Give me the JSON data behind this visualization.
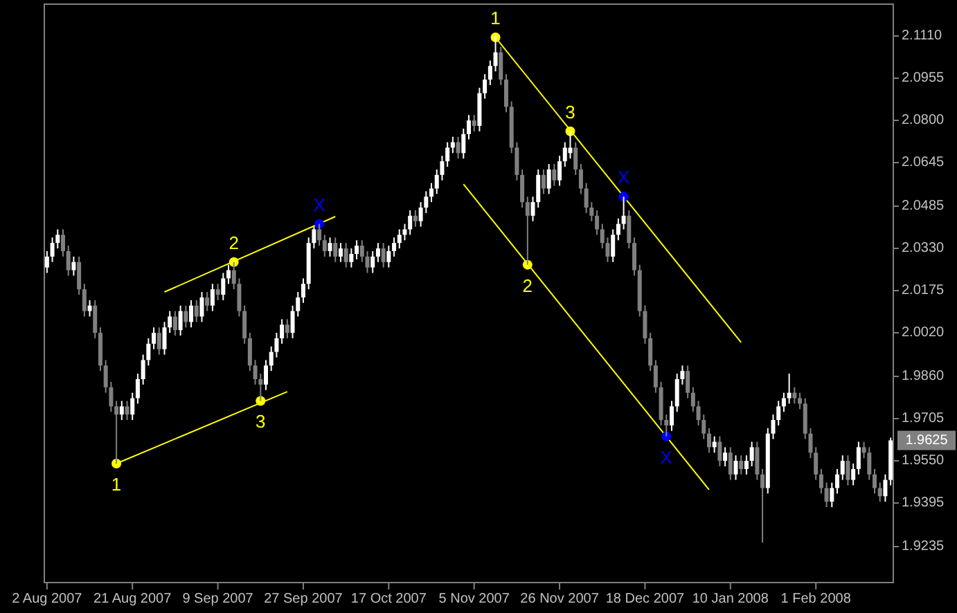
{
  "chart_data": {
    "type": "candlestick",
    "grid": false,
    "ylim": [
      1.9103,
      2.1227
    ],
    "yticks": [
      {
        "value": 2.111,
        "label": "2.1110"
      },
      2.0955,
      {
        "value": 2.08,
        "label": "2.0800"
      },
      2.0645,
      2.0485,
      {
        "value": 2.033,
        "label": "2.0330"
      },
      2.0175,
      {
        "value": 2.002,
        "label": "2.0020"
      },
      {
        "value": 1.986,
        "label": "1.9860"
      },
      1.9705,
      {
        "value": 1.955,
        "label": "1.9550"
      },
      1.9395,
      1.9235
    ],
    "categories": [
      "2 Aug 2007",
      null,
      null,
      null,
      null,
      null,
      null,
      null,
      null,
      null,
      null,
      null,
      null,
      null,
      null,
      null,
      "21 Aug 2007",
      null,
      null,
      null,
      null,
      null,
      null,
      null,
      null,
      null,
      null,
      null,
      null,
      null,
      null,
      null,
      "9 Sep 2007",
      null,
      null,
      null,
      null,
      null,
      null,
      null,
      null,
      null,
      null,
      null,
      null,
      null,
      null,
      null,
      "27 Sep 2007",
      null,
      null,
      null,
      null,
      null,
      null,
      null,
      null,
      null,
      null,
      null,
      null,
      null,
      null,
      null,
      "17 Oct 2007",
      null,
      null,
      null,
      null,
      null,
      null,
      null,
      null,
      null,
      null,
      null,
      null,
      null,
      null,
      null,
      "5 Nov 2007",
      null,
      null,
      null,
      null,
      null,
      null,
      null,
      null,
      null,
      null,
      null,
      null,
      null,
      null,
      null,
      "26 Nov 2007",
      null,
      null,
      null,
      null,
      null,
      null,
      null,
      null,
      null,
      null,
      null,
      null,
      null,
      null,
      null,
      "18 Dec 2007",
      null,
      null,
      null,
      null,
      null,
      null,
      null,
      null,
      null,
      null,
      null,
      null,
      null,
      null,
      null,
      "10 Jan 2008",
      null,
      null,
      null,
      null,
      null,
      null,
      null,
      null,
      null,
      null,
      null,
      null,
      null,
      null,
      null,
      "1 Feb 2008",
      null,
      null,
      null,
      null,
      null,
      null,
      null,
      null,
      null,
      null,
      null,
      null,
      null,
      null
    ],
    "ohlc": [
      [
        2.026,
        2.032,
        2.024,
        2.03
      ],
      [
        2.03,
        2.037,
        2.028,
        2.035
      ],
      [
        2.035,
        2.04,
        2.033,
        2.038
      ],
      [
        2.038,
        2.04,
        2.03,
        2.032
      ],
      [
        2.032,
        2.034,
        2.023,
        2.025
      ],
      [
        2.025,
        2.03,
        2.023,
        2.028
      ],
      [
        2.028,
        2.03,
        2.016,
        2.018
      ],
      [
        2.018,
        2.02,
        2.008,
        2.01
      ],
      [
        2.01,
        2.014,
        2.008,
        2.012
      ],
      [
        2.012,
        2.014,
        2.0,
        2.002
      ],
      [
        2.002,
        2.004,
        1.988,
        1.99
      ],
      [
        1.99,
        1.992,
        1.98,
        1.982
      ],
      [
        1.982,
        1.984,
        1.973,
        1.975
      ],
      [
        1.975,
        1.977,
        1.954,
        1.972
      ],
      [
        1.972,
        1.977,
        1.97,
        1.975
      ],
      [
        1.975,
        1.977,
        1.97,
        1.972
      ],
      [
        1.972,
        1.98,
        1.97,
        1.978
      ],
      [
        1.978,
        1.987,
        1.976,
        1.985
      ],
      [
        1.985,
        1.994,
        1.983,
        1.992
      ],
      [
        1.992,
        2.0,
        1.99,
        1.998
      ],
      [
        1.998,
        2.004,
        1.996,
        2.002
      ],
      [
        2.002,
        2.004,
        1.994,
        1.996
      ],
      [
        1.996,
        2.006,
        1.994,
        2.004
      ],
      [
        2.004,
        2.01,
        2.002,
        2.008
      ],
      [
        2.008,
        2.01,
        2.001,
        2.003
      ],
      [
        2.003,
        2.012,
        2.001,
        2.01
      ],
      [
        2.01,
        2.012,
        2.004,
        2.006
      ],
      [
        2.006,
        2.014,
        2.004,
        2.012
      ],
      [
        2.012,
        2.014,
        2.006,
        2.008
      ],
      [
        2.008,
        2.017,
        2.006,
        2.015
      ],
      [
        2.015,
        2.017,
        2.01,
        2.012
      ],
      [
        2.012,
        2.02,
        2.01,
        2.018
      ],
      [
        2.018,
        2.02,
        2.014,
        2.016
      ],
      [
        2.016,
        2.024,
        2.014,
        2.022
      ],
      [
        2.022,
        2.027,
        2.02,
        2.025
      ],
      [
        2.025,
        2.028,
        2.018,
        2.02
      ],
      [
        2.02,
        2.022,
        2.008,
        2.01
      ],
      [
        2.01,
        2.012,
        1.998,
        2.0
      ],
      [
        2.0,
        2.002,
        1.988,
        1.99
      ],
      [
        1.99,
        1.992,
        1.983,
        1.985
      ],
      [
        1.985,
        1.987,
        1.977,
        1.983
      ],
      [
        1.983,
        1.992,
        1.981,
        1.99
      ],
      [
        1.99,
        1.997,
        1.988,
        1.995
      ],
      [
        1.995,
        2.002,
        1.993,
        2.0
      ],
      [
        2.0,
        2.007,
        1.998,
        2.005
      ],
      [
        2.005,
        2.007,
        2.0,
        2.002
      ],
      [
        2.002,
        2.012,
        2.0,
        2.01
      ],
      [
        2.01,
        2.017,
        2.008,
        2.015
      ],
      [
        2.015,
        2.022,
        2.013,
        2.02
      ],
      [
        2.02,
        2.037,
        2.018,
        2.035
      ],
      [
        2.035,
        2.041,
        2.033,
        2.04
      ],
      [
        2.04,
        2.042,
        2.034,
        2.036
      ],
      [
        2.036,
        2.038,
        2.03,
        2.032
      ],
      [
        2.032,
        2.037,
        2.03,
        2.035
      ],
      [
        2.035,
        2.037,
        2.028,
        2.03
      ],
      [
        2.03,
        2.035,
        2.028,
        2.033
      ],
      [
        2.033,
        2.035,
        2.026,
        2.028
      ],
      [
        2.028,
        2.033,
        2.026,
        2.031
      ],
      [
        2.031,
        2.036,
        2.029,
        2.034
      ],
      [
        2.034,
        2.036,
        2.028,
        2.03
      ],
      [
        2.03,
        2.032,
        2.024,
        2.026
      ],
      [
        2.026,
        2.032,
        2.024,
        2.03
      ],
      [
        2.03,
        2.035,
        2.028,
        2.033
      ],
      [
        2.033,
        2.035,
        2.026,
        2.028
      ],
      [
        2.028,
        2.034,
        2.026,
        2.032
      ],
      [
        2.032,
        2.037,
        2.03,
        2.035
      ],
      [
        2.035,
        2.04,
        2.033,
        2.038
      ],
      [
        2.038,
        2.042,
        2.036,
        2.04
      ],
      [
        2.04,
        2.047,
        2.038,
        2.045
      ],
      [
        2.045,
        2.047,
        2.041,
        2.043
      ],
      [
        2.043,
        2.05,
        2.041,
        2.048
      ],
      [
        2.048,
        2.054,
        2.046,
        2.052
      ],
      [
        2.052,
        2.057,
        2.05,
        2.055
      ],
      [
        2.055,
        2.062,
        2.053,
        2.06
      ],
      [
        2.06,
        2.067,
        2.058,
        2.065
      ],
      [
        2.065,
        2.072,
        2.063,
        2.07
      ],
      [
        2.07,
        2.074,
        2.068,
        2.072
      ],
      [
        2.072,
        2.074,
        2.066,
        2.068
      ],
      [
        2.068,
        2.077,
        2.066,
        2.075
      ],
      [
        2.075,
        2.082,
        2.073,
        2.08
      ],
      [
        2.08,
        2.082,
        2.076,
        2.078
      ],
      [
        2.078,
        2.092,
        2.076,
        2.09
      ],
      [
        2.09,
        2.097,
        2.088,
        2.095
      ],
      [
        2.095,
        2.102,
        2.093,
        2.1
      ],
      [
        2.1,
        2.111,
        2.098,
        2.105
      ],
      [
        2.105,
        2.107,
        2.093,
        2.095
      ],
      [
        2.095,
        2.097,
        2.083,
        2.085
      ],
      [
        2.085,
        2.087,
        2.068,
        2.07
      ],
      [
        2.07,
        2.072,
        2.058,
        2.06
      ],
      [
        2.06,
        2.062,
        2.048,
        2.05
      ],
      [
        2.05,
        2.052,
        2.027,
        2.045
      ],
      [
        2.045,
        2.052,
        2.043,
        2.05
      ],
      [
        2.05,
        2.062,
        2.048,
        2.06
      ],
      [
        2.06,
        2.062,
        2.053,
        2.055
      ],
      [
        2.055,
        2.064,
        2.053,
        2.062
      ],
      [
        2.062,
        2.064,
        2.056,
        2.058
      ],
      [
        2.058,
        2.067,
        2.056,
        2.065
      ],
      [
        2.065,
        2.072,
        2.063,
        2.07
      ],
      [
        2.068,
        2.076,
        2.066,
        2.07
      ],
      [
        2.07,
        2.072,
        2.06,
        2.062
      ],
      [
        2.062,
        2.064,
        2.053,
        2.055
      ],
      [
        2.055,
        2.057,
        2.046,
        2.048
      ],
      [
        2.048,
        2.05,
        2.043,
        2.045
      ],
      [
        2.045,
        2.047,
        2.038,
        2.04
      ],
      [
        2.04,
        2.042,
        2.033,
        2.035
      ],
      [
        2.035,
        2.037,
        2.028,
        2.03
      ],
      [
        2.03,
        2.04,
        2.028,
        2.038
      ],
      [
        2.038,
        2.044,
        2.036,
        2.042
      ],
      [
        2.042,
        2.052,
        2.04,
        2.045
      ],
      [
        2.045,
        2.047,
        2.033,
        2.035
      ],
      [
        2.035,
        2.037,
        2.023,
        2.025
      ],
      [
        2.025,
        2.027,
        2.008,
        2.01
      ],
      [
        2.01,
        2.012,
        1.998,
        2.0
      ],
      [
        2.0,
        2.002,
        1.988,
        1.99
      ],
      [
        1.99,
        1.992,
        1.98,
        1.982
      ],
      [
        1.982,
        1.984,
        1.968,
        1.97
      ],
      [
        1.97,
        1.972,
        1.964,
        1.968
      ],
      [
        1.968,
        1.977,
        1.966,
        1.975
      ],
      [
        1.975,
        1.987,
        1.973,
        1.985
      ],
      [
        1.985,
        1.99,
        1.983,
        1.988
      ],
      [
        1.988,
        1.99,
        1.978,
        1.98
      ],
      [
        1.98,
        1.982,
        1.973,
        1.975
      ],
      [
        1.975,
        1.977,
        1.968,
        1.97
      ],
      [
        1.97,
        1.972,
        1.963,
        1.965
      ],
      [
        1.965,
        1.967,
        1.958,
        1.96
      ],
      [
        1.96,
        1.964,
        1.958,
        1.962
      ],
      [
        1.962,
        1.964,
        1.953,
        1.955
      ],
      [
        1.955,
        1.96,
        1.953,
        1.958
      ],
      [
        1.958,
        1.96,
        1.948,
        1.95
      ],
      [
        1.95,
        1.957,
        1.948,
        1.955
      ],
      [
        1.955,
        1.957,
        1.95,
        1.952
      ],
      [
        1.952,
        1.957,
        1.95,
        1.955
      ],
      [
        1.955,
        1.962,
        1.953,
        1.96
      ],
      [
        1.96,
        1.962,
        1.948,
        1.95
      ],
      [
        1.95,
        1.952,
        1.925,
        1.945
      ],
      [
        1.945,
        1.967,
        1.943,
        1.965
      ],
      [
        1.965,
        1.972,
        1.963,
        1.97
      ],
      [
        1.97,
        1.977,
        1.968,
        1.975
      ],
      [
        1.975,
        1.98,
        1.973,
        1.978
      ],
      [
        1.978,
        1.987,
        1.976,
        1.98
      ],
      [
        1.98,
        1.982,
        1.976,
        1.978
      ],
      [
        1.978,
        1.98,
        1.974,
        1.976
      ],
      [
        1.976,
        1.978,
        1.963,
        1.965
      ],
      [
        1.965,
        1.967,
        1.956,
        1.958
      ],
      [
        1.958,
        1.96,
        1.948,
        1.95
      ],
      [
        1.95,
        1.952,
        1.943,
        1.945
      ],
      [
        1.945,
        1.947,
        1.938,
        1.94
      ],
      [
        1.94,
        1.947,
        1.938,
        1.945
      ],
      [
        1.945,
        1.952,
        1.943,
        1.95
      ],
      [
        1.95,
        1.957,
        1.948,
        1.955
      ],
      [
        1.955,
        1.957,
        1.946,
        1.948
      ],
      [
        1.948,
        1.954,
        1.946,
        1.952
      ],
      [
        1.952,
        1.962,
        1.95,
        1.96
      ],
      [
        1.96,
        1.962,
        1.956,
        1.958
      ],
      [
        1.958,
        1.96,
        1.948,
        1.95
      ],
      [
        1.95,
        1.952,
        1.943,
        1.945
      ],
      [
        1.945,
        1.947,
        1.94,
        1.942
      ],
      [
        1.942,
        1.95,
        1.94,
        1.948
      ],
      [
        1.948,
        1.9635,
        1.946,
        1.9625
      ]
    ],
    "series": [
      {
        "type": "line",
        "color": "#ffff00",
        "values": [
          null,
          null,
          null,
          null,
          null,
          null,
          null,
          null,
          null,
          null,
          null,
          null,
          null,
          null,
          null,
          null,
          null,
          null,
          null,
          null,
          null,
          null,
          2.017,
          null,
          null,
          null,
          null,
          null,
          null,
          null,
          null,
          null,
          null,
          null,
          null,
          null,
          null,
          null,
          null,
          null,
          null,
          null,
          null,
          null,
          null,
          null,
          null,
          null,
          null,
          null,
          null,
          null,
          null,
          null,
          2.0447,
          null,
          null,
          null,
          null,
          null,
          null,
          null,
          null,
          null,
          null,
          null,
          null,
          null,
          null,
          null,
          null,
          null,
          null,
          null,
          null,
          null,
          null,
          null,
          null,
          null,
          null,
          null,
          null,
          null,
          null,
          null,
          null,
          null,
          null,
          null,
          null,
          null,
          null,
          null,
          null,
          null,
          null,
          null,
          null,
          null,
          null,
          null,
          null,
          null,
          null,
          null,
          null,
          null,
          null,
          null,
          null,
          null,
          null,
          null,
          null,
          null,
          null,
          null,
          null,
          null,
          null,
          null,
          null,
          null,
          null,
          null,
          null,
          null,
          null,
          null,
          null,
          null,
          null,
          null,
          null,
          null,
          null,
          null,
          null,
          null,
          null,
          null,
          null,
          null,
          null,
          null,
          null,
          null,
          null,
          null,
          null,
          null,
          null,
          null,
          null,
          null,
          null,
          null,
          null
        ]
      },
      {
        "type": "line",
        "color": "#ffff00",
        "values": [
          null,
          null,
          null,
          null,
          null,
          null,
          null,
          null,
          null,
          null,
          null,
          null,
          null,
          1.954,
          null,
          null,
          null,
          null,
          null,
          null,
          null,
          null,
          null,
          null,
          null,
          null,
          null,
          null,
          null,
          null,
          null,
          null,
          null,
          null,
          null,
          null,
          null,
          null,
          null,
          null,
          null,
          null,
          null,
          null,
          null,
          1.9804,
          null,
          null,
          null,
          null,
          null,
          null,
          null,
          null,
          null,
          null,
          null,
          null,
          null,
          null,
          null,
          null,
          null,
          null,
          null,
          null,
          null,
          null,
          null,
          null,
          null,
          null,
          null,
          null,
          null,
          null,
          null,
          null,
          null,
          null,
          null,
          null,
          null,
          null,
          null,
          null,
          null,
          null,
          null,
          null,
          null,
          null,
          null,
          null,
          null,
          null,
          null,
          null,
          null,
          null,
          null,
          null,
          null,
          null,
          null,
          null,
          null,
          null,
          null,
          null,
          null,
          null,
          null,
          null,
          null,
          null,
          null,
          null,
          null,
          null,
          null,
          null,
          null,
          null,
          null,
          null,
          null,
          null,
          null,
          null,
          null,
          null,
          null,
          null,
          null,
          null,
          null,
          null,
          null,
          null,
          null,
          null,
          null,
          null,
          null,
          null,
          null,
          null,
          null,
          null,
          null,
          null,
          null,
          null,
          null,
          null,
          null,
          null,
          null
        ]
      },
      {
        "type": "line",
        "color": "#ffff00",
        "values": [
          null,
          null,
          null,
          null,
          null,
          null,
          null,
          null,
          null,
          null,
          null,
          null,
          null,
          null,
          null,
          null,
          null,
          null,
          null,
          null,
          null,
          null,
          null,
          null,
          null,
          null,
          null,
          null,
          null,
          null,
          null,
          null,
          null,
          null,
          null,
          null,
          null,
          null,
          null,
          null,
          null,
          null,
          null,
          null,
          null,
          null,
          null,
          null,
          null,
          null,
          null,
          null,
          null,
          null,
          null,
          null,
          null,
          null,
          null,
          null,
          null,
          null,
          null,
          null,
          null,
          null,
          null,
          null,
          null,
          null,
          null,
          null,
          null,
          null,
          null,
          null,
          null,
          null,
          null,
          null,
          null,
          null,
          null,
          null,
          2.1105,
          null,
          null,
          null,
          null,
          null,
          null,
          null,
          null,
          null,
          null,
          null,
          null,
          null,
          null,
          null,
          null,
          null,
          null,
          null,
          null,
          null,
          null,
          null,
          null,
          null,
          null,
          null,
          null,
          null,
          null,
          null,
          null,
          null,
          null,
          null,
          null,
          null,
          null,
          null,
          null,
          null,
          null,
          null,
          null,
          null,
          1.9985,
          null,
          null,
          null,
          null,
          null,
          null,
          null,
          null,
          null,
          null,
          null,
          null,
          null,
          null,
          null,
          null,
          null,
          null,
          null,
          null,
          null,
          null,
          null,
          null,
          null,
          null,
          null,
          null
        ]
      },
      {
        "type": "line",
        "color": "#ffff00",
        "values": [
          null,
          null,
          null,
          null,
          null,
          null,
          null,
          null,
          null,
          null,
          null,
          null,
          null,
          null,
          null,
          null,
          null,
          null,
          null,
          null,
          null,
          null,
          null,
          null,
          null,
          null,
          null,
          null,
          null,
          null,
          null,
          null,
          null,
          null,
          null,
          null,
          null,
          null,
          null,
          null,
          null,
          null,
          null,
          null,
          null,
          null,
          null,
          null,
          null,
          null,
          null,
          null,
          null,
          null,
          null,
          null,
          null,
          null,
          null,
          null,
          null,
          null,
          null,
          null,
          null,
          null,
          null,
          null,
          null,
          null,
          null,
          null,
          null,
          null,
          null,
          null,
          null,
          null,
          2.0566,
          null,
          null,
          null,
          null,
          null,
          null,
          null,
          null,
          null,
          null,
          null,
          null,
          null,
          null,
          null,
          null,
          null,
          null,
          null,
          null,
          null,
          null,
          null,
          null,
          null,
          null,
          null,
          null,
          null,
          null,
          null,
          null,
          null,
          null,
          null,
          null,
          null,
          null,
          null,
          null,
          null,
          null,
          null,
          null,
          null,
          1.9444,
          null,
          null,
          null,
          null,
          null,
          null,
          null,
          null,
          null,
          null,
          null,
          null,
          null,
          null,
          null,
          null,
          null,
          null,
          null,
          null,
          null,
          null,
          null,
          null,
          null,
          null,
          null,
          null,
          null,
          null,
          null,
          null,
          null,
          null
        ]
      },
      {
        "type": "scatter",
        "name": "1",
        "color": "#ffff00",
        "marker": "circle",
        "values": [
          null,
          null,
          null,
          null,
          null,
          null,
          null,
          null,
          null,
          null,
          null,
          null,
          null,
          1.954,
          null,
          null,
          null,
          null,
          null,
          null,
          null,
          null,
          null,
          null,
          null,
          null,
          null,
          null,
          null,
          null,
          null,
          null,
          null,
          null,
          null,
          null,
          null,
          null,
          null,
          null,
          null,
          null,
          null,
          null,
          null,
          null,
          null,
          null,
          null,
          null,
          null,
          null,
          null,
          null,
          null,
          null,
          null,
          null,
          null,
          null,
          null,
          null,
          null,
          null,
          null,
          null,
          null,
          null,
          null,
          null,
          null,
          null,
          null,
          null,
          null,
          null,
          null,
          null,
          null,
          null,
          null,
          null,
          null,
          null,
          2.1105,
          null,
          null,
          null,
          null,
          null,
          null,
          null,
          null,
          null,
          null,
          null,
          null,
          null,
          null,
          null,
          null,
          null,
          null,
          null,
          null,
          null,
          null,
          null,
          null,
          null,
          null,
          null,
          null,
          null,
          null,
          null,
          null,
          null,
          null,
          null,
          null,
          null,
          null,
          null,
          null,
          null,
          null,
          null,
          null,
          null,
          null,
          null,
          null,
          null,
          null,
          null,
          null,
          null,
          null,
          null,
          null,
          null,
          null,
          null,
          null,
          null,
          null,
          null,
          null,
          null,
          null,
          null,
          null,
          null,
          null,
          null,
          null,
          null,
          null
        ]
      },
      {
        "type": "scatter",
        "name": "2",
        "color": "#ffff00",
        "marker": "circle",
        "values": [
          null,
          null,
          null,
          null,
          null,
          null,
          null,
          null,
          null,
          null,
          null,
          null,
          null,
          null,
          null,
          null,
          null,
          null,
          null,
          null,
          null,
          null,
          null,
          null,
          null,
          null,
          null,
          null,
          null,
          null,
          null,
          null,
          null,
          null,
          null,
          2.028,
          null,
          null,
          null,
          null,
          null,
          null,
          null,
          null,
          null,
          null,
          null,
          null,
          null,
          null,
          null,
          null,
          null,
          null,
          null,
          null,
          null,
          null,
          null,
          null,
          null,
          null,
          null,
          null,
          null,
          null,
          null,
          null,
          null,
          null,
          null,
          null,
          null,
          null,
          null,
          null,
          null,
          null,
          null,
          null,
          null,
          null,
          null,
          null,
          null,
          null,
          null,
          null,
          null,
          null,
          2.027,
          null,
          null,
          null,
          null,
          null,
          null,
          null,
          null,
          null,
          null,
          null,
          null,
          null,
          null,
          null,
          null,
          null,
          null,
          null,
          null,
          null,
          null,
          null,
          null,
          null,
          null,
          null,
          null,
          null,
          null,
          null,
          null,
          null,
          null,
          null,
          null,
          null,
          null,
          null,
          null,
          null,
          null,
          null,
          null,
          null,
          null,
          null,
          null,
          null,
          null,
          null,
          null,
          null,
          null,
          null,
          null,
          null,
          null,
          null,
          null,
          null,
          null,
          null,
          null,
          null,
          null,
          null,
          null
        ]
      },
      {
        "type": "scatter",
        "name": "3",
        "color": "#ffff00",
        "marker": "circle",
        "values": [
          null,
          null,
          null,
          null,
          null,
          null,
          null,
          null,
          null,
          null,
          null,
          null,
          null,
          null,
          null,
          null,
          null,
          null,
          null,
          null,
          null,
          null,
          null,
          null,
          null,
          null,
          null,
          null,
          null,
          null,
          null,
          null,
          null,
          null,
          null,
          null,
          null,
          null,
          null,
          null,
          1.977,
          null,
          null,
          null,
          null,
          null,
          null,
          null,
          null,
          null,
          null,
          null,
          null,
          null,
          null,
          null,
          null,
          null,
          null,
          null,
          null,
          null,
          null,
          null,
          null,
          null,
          null,
          null,
          null,
          null,
          null,
          null,
          null,
          null,
          null,
          null,
          null,
          null,
          null,
          null,
          null,
          null,
          null,
          null,
          null,
          null,
          null,
          null,
          null,
          null,
          null,
          null,
          null,
          null,
          null,
          null,
          null,
          null,
          2.076,
          null,
          null,
          null,
          null,
          null,
          null,
          null,
          null,
          null,
          null,
          null,
          null,
          null,
          null,
          null,
          null,
          null,
          null,
          null,
          null,
          null,
          null,
          null,
          null,
          null,
          null,
          null,
          null,
          null,
          null,
          null,
          null,
          null,
          null,
          null,
          null,
          null,
          null,
          null,
          null,
          null,
          null,
          null,
          null,
          null,
          null,
          null,
          null,
          null,
          null,
          null,
          null,
          null,
          null,
          null,
          null,
          null,
          null,
          null,
          null
        ]
      },
      {
        "type": "scatter",
        "name": "X",
        "color": "#0000ff",
        "marker": "circle",
        "values": [
          null,
          null,
          null,
          null,
          null,
          null,
          null,
          null,
          null,
          null,
          null,
          null,
          null,
          null,
          null,
          null,
          null,
          null,
          null,
          null,
          null,
          null,
          null,
          null,
          null,
          null,
          null,
          null,
          null,
          null,
          null,
          null,
          null,
          null,
          null,
          null,
          null,
          null,
          null,
          null,
          null,
          null,
          null,
          null,
          null,
          null,
          null,
          null,
          null,
          null,
          null,
          2.042,
          null,
          null,
          null,
          null,
          null,
          null,
          null,
          null,
          null,
          null,
          null,
          null,
          null,
          null,
          null,
          null,
          null,
          null,
          null,
          null,
          null,
          null,
          null,
          null,
          null,
          null,
          null,
          null,
          null,
          null,
          null,
          null,
          null,
          null,
          null,
          null,
          null,
          null,
          null,
          null,
          null,
          null,
          null,
          null,
          null,
          null,
          null,
          null,
          null,
          null,
          null,
          null,
          null,
          null,
          null,
          null,
          2.052,
          null,
          null,
          null,
          null,
          null,
          null,
          null,
          1.964,
          null,
          null,
          null,
          null,
          null,
          null,
          null,
          null,
          null,
          null,
          null,
          null,
          null,
          null,
          null,
          null,
          null,
          null,
          null,
          null,
          null,
          null,
          null,
          null,
          null,
          null,
          null,
          null,
          null,
          null,
          null,
          null,
          null,
          null,
          null,
          null,
          null,
          null,
          null,
          null,
          null,
          null
        ]
      }
    ],
    "annotations": [
      "1.9625"
    ]
  }
}
